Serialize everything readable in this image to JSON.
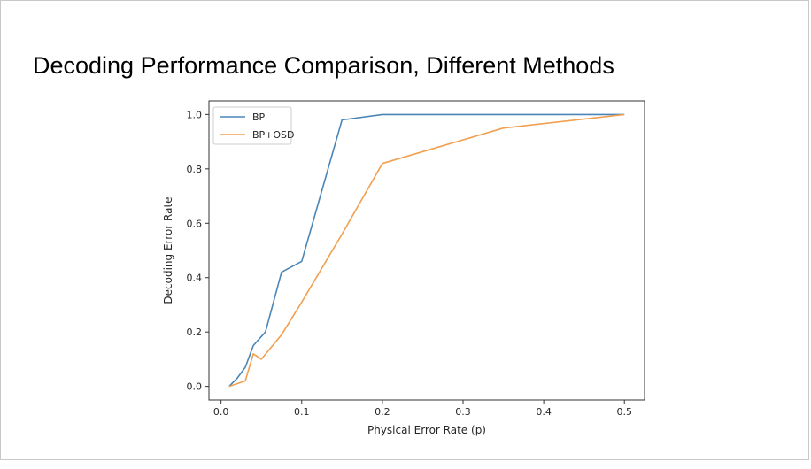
{
  "slide": {
    "title": "Decoding Performance Comparison, Different Methods"
  },
  "colors": {
    "bp": "#4a86b8",
    "bp_osd": "#f0a050",
    "axis": "#333333"
  },
  "chart_data": {
    "type": "line",
    "title": "",
    "xlabel": "Physical Error Rate (p)",
    "ylabel": "Decoding Error Rate",
    "xlim": [
      -0.015,
      0.525
    ],
    "ylim": [
      -0.05,
      1.05
    ],
    "xticks": [
      0.0,
      0.1,
      0.2,
      0.3,
      0.4,
      0.5
    ],
    "xtick_labels": [
      "0.0",
      "0.1",
      "0.2",
      "0.3",
      "0.4",
      "0.5"
    ],
    "yticks": [
      0.0,
      0.2,
      0.4,
      0.6,
      0.8,
      1.0
    ],
    "ytick_labels": [
      "0.0",
      "0.2",
      "0.4",
      "0.6",
      "0.8",
      "1.0"
    ],
    "grid": false,
    "legend_position": "top-left",
    "series": [
      {
        "name": "BP",
        "color": "#4a86b8",
        "x": [
          0.01,
          0.02,
          0.03,
          0.04,
          0.055,
          0.075,
          0.1,
          0.15,
          0.2,
          0.3,
          0.35,
          0.5
        ],
        "y": [
          0.0,
          0.03,
          0.07,
          0.15,
          0.2,
          0.42,
          0.46,
          0.98,
          1.0,
          1.0,
          1.0,
          1.0
        ]
      },
      {
        "name": "BP+OSD",
        "color": "#f0a050",
        "x": [
          0.01,
          0.03,
          0.04,
          0.05,
          0.075,
          0.1,
          0.15,
          0.2,
          0.35,
          0.5
        ],
        "y": [
          0.0,
          0.02,
          0.12,
          0.1,
          0.19,
          0.31,
          0.56,
          0.82,
          0.95,
          1.0
        ]
      }
    ]
  }
}
